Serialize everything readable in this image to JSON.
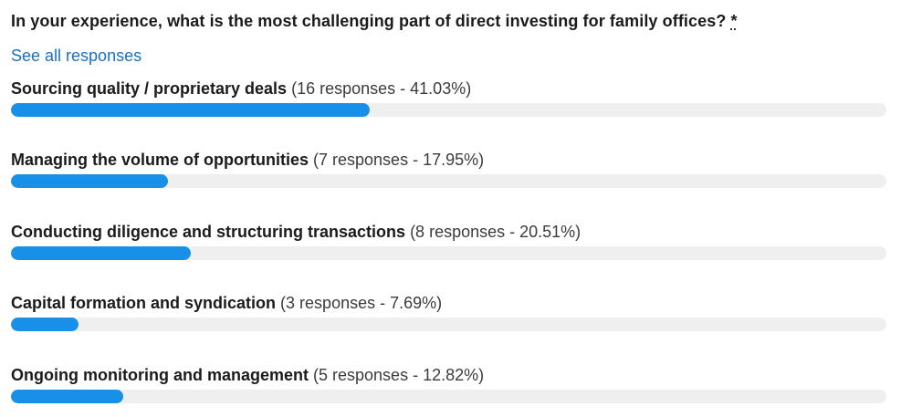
{
  "poll": {
    "question": "In your experience, what is the most challenging part of direct investing for family offices?",
    "required_marker": "*",
    "see_all_label": "See all responses",
    "accent_color": "#1890e8",
    "options": [
      {
        "label": "Sourcing quality / proprietary deals",
        "stats": "(16 responses - 41.03%)",
        "percent": 41.03
      },
      {
        "label": "Managing the volume of opportunities",
        "stats": "(7 responses - 17.95%)",
        "percent": 17.95
      },
      {
        "label": "Conducting diligence and structuring transactions",
        "stats": "(8 responses - 20.51%)",
        "percent": 20.51
      },
      {
        "label": "Capital formation and syndication",
        "stats": "(3 responses - 7.69%)",
        "percent": 7.69
      },
      {
        "label": "Ongoing monitoring and management",
        "stats": "(5 responses - 12.82%)",
        "percent": 12.82
      }
    ]
  }
}
